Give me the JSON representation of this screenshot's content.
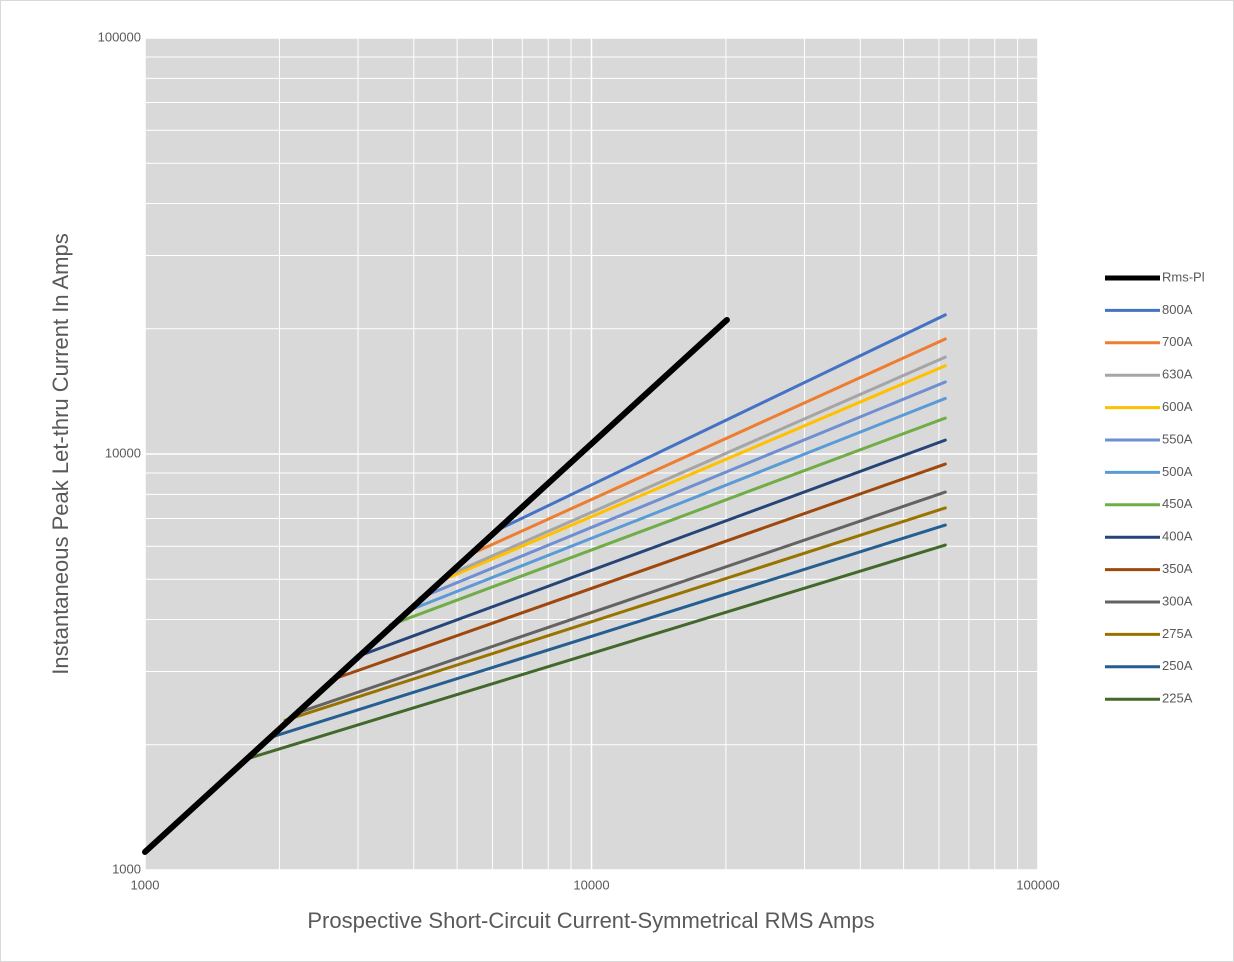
{
  "chart_data": {
    "type": "line",
    "x_scale": "log",
    "y_scale": "log",
    "x_label": "Prospective Short-Circuit Current-Symmetrical RMS Amps",
    "y_label": "Instantaneous Peak Let-thru Current In Amps",
    "xlim": [
      1000,
      100000
    ],
    "ylim": [
      1000,
      100000
    ],
    "xticks": [
      1000,
      10000,
      100000
    ],
    "yticks": [
      1000,
      10000,
      100000
    ],
    "grid": true,
    "legend": "right",
    "series": [
      {
        "name": "Rms-Pl",
        "color": "#000000",
        "x": [
          1000,
          20100
        ],
        "values": [
          1105,
          21000
        ]
      },
      {
        "name": "800A",
        "color": "#4472c4",
        "x": [
          6150,
          62000
        ],
        "values": [
          6560,
          21600
        ]
      },
      {
        "name": "700A",
        "color": "#ed7d31",
        "x": [
          5440,
          62000
        ],
        "values": [
          5780,
          18900
        ]
      },
      {
        "name": "630A",
        "color": "#a5a5a5",
        "x": [
          4950,
          62000
        ],
        "values": [
          5200,
          17100
        ]
      },
      {
        "name": "600A",
        "color": "#ffc000",
        "x": [
          4650,
          62000
        ],
        "values": [
          4980,
          16300
        ]
      },
      {
        "name": "550A",
        "color": "#6f8fd0",
        "x": [
          4130,
          62000
        ],
        "values": [
          4510,
          14900
        ]
      },
      {
        "name": "500A",
        "color": "#5b9bd5",
        "x": [
          3820,
          62000
        ],
        "values": [
          4170,
          13600
        ]
      },
      {
        "name": "450A",
        "color": "#70ad47",
        "x": [
          3540,
          62000
        ],
        "values": [
          3880,
          12200
        ]
      },
      {
        "name": "400A",
        "color": "#264478",
        "x": [
          3060,
          62000
        ],
        "values": [
          3290,
          10800
        ]
      },
      {
        "name": "350A",
        "color": "#9e480e",
        "x": [
          2700,
          62000
        ],
        "values": [
          2900,
          9460
        ]
      },
      {
        "name": "300A",
        "color": "#636363",
        "x": [
          2230,
          62000
        ],
        "values": [
          2400,
          8100
        ]
      },
      {
        "name": "275A",
        "color": "#997300",
        "x": [
          2060,
          62000
        ],
        "values": [
          2290,
          7420
        ]
      },
      {
        "name": "250A",
        "color": "#255e91",
        "x": [
          1900,
          62000
        ],
        "values": [
          2080,
          6750
        ]
      },
      {
        "name": "225A",
        "color": "#43682b",
        "x": [
          1720,
          62000
        ],
        "values": [
          1860,
          6040
        ]
      }
    ]
  }
}
